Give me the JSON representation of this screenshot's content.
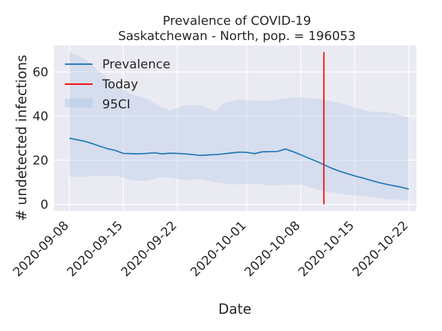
{
  "chart_data": {
    "type": "line",
    "title": "Prevalence of COVID-19",
    "subtitle": "Saskatchewan - North, pop. = 196053",
    "xlabel": "Date",
    "ylabel": "# undetected infections",
    "x_ticks": [
      "2020-09-08",
      "2020-09-15",
      "2020-09-22",
      "2020-10-01",
      "2020-10-08",
      "2020-10-15",
      "2020-10-22"
    ],
    "y_ticks": [
      "0",
      "20",
      "40",
      "60"
    ],
    "xlim": [
      "2020-09-06",
      "2020-10-23"
    ],
    "ylim": [
      -3,
      72
    ],
    "grid": true,
    "legend_placement": "top-left",
    "series": [
      {
        "name": "Prevalence",
        "color": "#1f77b4",
        "x": [
          "2020-09-08",
          "2020-09-09",
          "2020-09-10",
          "2020-09-11",
          "2020-09-12",
          "2020-09-13",
          "2020-09-14",
          "2020-09-15",
          "2020-09-16",
          "2020-09-17",
          "2020-09-18",
          "2020-09-19",
          "2020-09-20",
          "2020-09-21",
          "2020-09-22",
          "2020-09-23",
          "2020-09-24",
          "2020-09-25",
          "2020-09-26",
          "2020-09-27",
          "2020-09-28",
          "2020-09-29",
          "2020-09-30",
          "2020-10-01",
          "2020-10-02",
          "2020-10-03",
          "2020-10-04",
          "2020-10-05",
          "2020-10-06",
          "2020-10-07",
          "2020-10-08",
          "2020-10-09",
          "2020-10-10",
          "2020-10-11",
          "2020-10-12",
          "2020-10-13",
          "2020-10-14",
          "2020-10-15",
          "2020-10-16",
          "2020-10-17",
          "2020-10-18",
          "2020-10-19",
          "2020-10-20",
          "2020-10-21",
          "2020-10-22"
        ],
        "y": [
          30.0,
          29.3,
          28.6,
          27.5,
          26.3,
          25.2,
          24.4,
          23.1,
          23.0,
          22.9,
          23.1,
          23.4,
          22.9,
          23.2,
          23.1,
          22.9,
          22.6,
          22.2,
          22.4,
          22.6,
          22.9,
          23.3,
          23.7,
          23.6,
          23.0,
          23.8,
          23.9,
          24.0,
          25.1,
          23.9,
          22.5,
          21.0,
          19.6,
          18.0,
          16.4,
          15.1,
          14.0,
          12.9,
          12.0,
          11.0,
          10.0,
          9.2,
          8.5,
          7.8,
          6.9
        ]
      },
      {
        "name": "Today",
        "color": "#ff0000",
        "x": [
          "2020-10-11",
          "2020-10-11"
        ],
        "y": [
          0,
          69
        ]
      }
    ],
    "band": {
      "name": "95CI",
      "color": "#aec7e8",
      "x": [
        "2020-09-08",
        "2020-09-10",
        "2020-09-12",
        "2020-09-14",
        "2020-09-16",
        "2020-09-18",
        "2020-09-20",
        "2020-09-21",
        "2020-09-23",
        "2020-09-25",
        "2020-09-27",
        "2020-09-28",
        "2020-09-30",
        "2020-10-02",
        "2020-10-04",
        "2020-10-06",
        "2020-10-07",
        "2020-10-08",
        "2020-10-11",
        "2020-10-13",
        "2020-10-15",
        "2020-10-17",
        "2020-10-19",
        "2020-10-22"
      ],
      "upper": [
        69,
        66,
        60,
        54,
        50,
        48,
        44,
        42.5,
        45,
        45,
        42,
        46,
        47.5,
        47,
        47,
        48,
        48.5,
        48.5,
        47.5,
        46,
        44,
        42,
        42,
        39.5
      ],
      "lower": [
        12.5,
        12.5,
        13,
        13,
        11,
        10.5,
        12.5,
        12,
        11,
        11.5,
        10,
        9.5,
        9,
        9.5,
        8.5,
        9,
        9,
        9,
        6,
        5,
        4,
        3.5,
        2.5,
        1.8
      ]
    }
  }
}
